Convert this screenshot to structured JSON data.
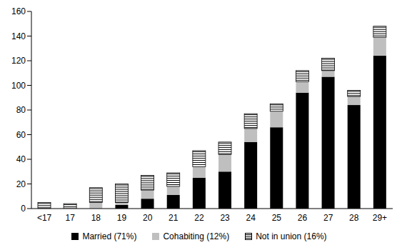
{
  "chart_data": {
    "type": "bar",
    "stacked": true,
    "grid": false,
    "legend": "bottom",
    "categories": [
      "<17",
      "17",
      "18",
      "19",
      "20",
      "21",
      "22",
      "23",
      "24",
      "25",
      "26",
      "27",
      "28",
      "29+"
    ],
    "ylim": [
      0,
      160
    ],
    "yticks": [
      0,
      20,
      40,
      60,
      80,
      100,
      120,
      140,
      160
    ],
    "series": [
      {
        "name": "Married (71%)",
        "color": "#000000",
        "values": [
          0,
          0,
          0,
          3,
          8,
          11,
          25,
          30,
          54,
          66,
          94,
          107,
          84,
          124
        ]
      },
      {
        "name": "Cohabiting (12%)",
        "color": "#bfbfbf",
        "values": [
          0,
          0,
          5,
          2,
          7,
          7,
          9,
          14,
          11,
          13,
          9,
          5,
          7,
          15
        ]
      },
      {
        "name": "Not in union (16%)",
        "color": "#ffffff",
        "line_style": "hatched",
        "values": [
          5,
          4,
          12,
          15,
          12,
          11,
          13,
          10,
          12,
          6,
          9,
          10,
          5,
          9
        ]
      }
    ]
  }
}
